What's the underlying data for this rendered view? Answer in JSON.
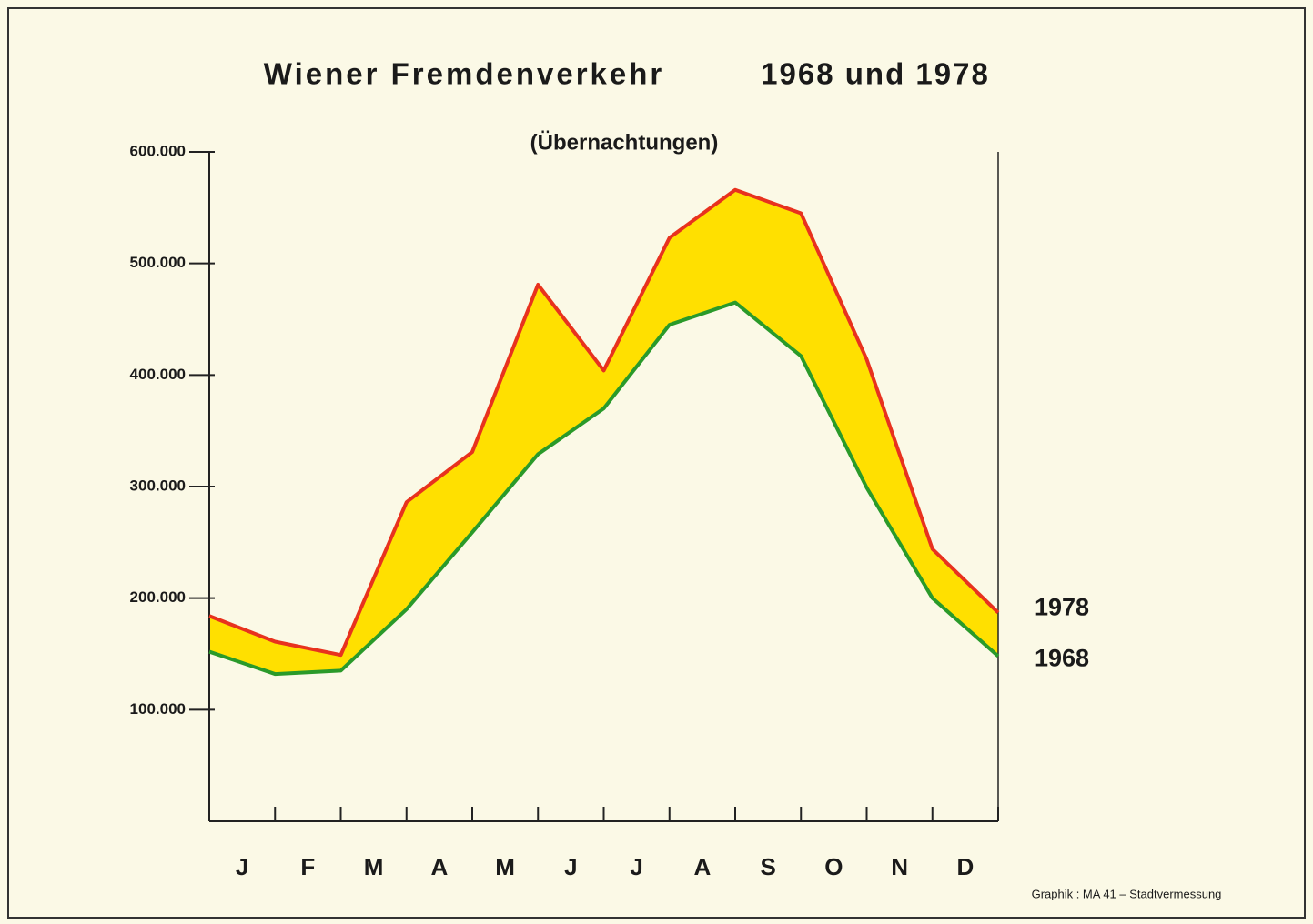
{
  "chart_data": {
    "type": "line",
    "title": "Wiener Fremdenverkehr",
    "title_right": "1968 und 1978",
    "subtitle": "(Übernachtungen)",
    "credit": "Graphik :  MA 41 – Stadtvermessung",
    "x": [
      0,
      1,
      2,
      3,
      4,
      5,
      6,
      7,
      8,
      9,
      10,
      11,
      12
    ],
    "xlim": [
      0,
      12
    ],
    "xticks": [
      0,
      1,
      2,
      3,
      4,
      5,
      6,
      7,
      8,
      9,
      10,
      11,
      12
    ],
    "month_labels": [
      "J",
      "F",
      "M",
      "A",
      "M",
      "J",
      "J",
      "A",
      "S",
      "O",
      "N",
      "D"
    ],
    "ylim": [
      0,
      600000
    ],
    "yticks": [
      {
        "value": 100000,
        "label": "100.000"
      },
      {
        "value": 200000,
        "label": "200.000"
      },
      {
        "value": 300000,
        "label": "300.000"
      },
      {
        "value": 400000,
        "label": "400.000"
      },
      {
        "value": 500000,
        "label": "500.000"
      },
      {
        "value": 600000,
        "label": "600.000"
      }
    ],
    "fill_color": "#ffe000",
    "series": [
      {
        "name": "1978",
        "color": "#e8321e",
        "values": [
          184000,
          161000,
          149000,
          286000,
          331000,
          481000,
          404000,
          523000,
          566000,
          545000,
          414000,
          244000,
          187000
        ]
      },
      {
        "name": "1968",
        "color": "#2a9a2a",
        "values": [
          152000,
          132000,
          135000,
          190000,
          259000,
          329000,
          370000,
          445000,
          465000,
          417000,
          299000,
          200000,
          148000
        ]
      }
    ]
  }
}
